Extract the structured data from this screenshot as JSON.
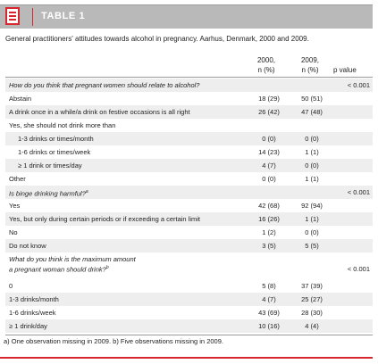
{
  "header": {
    "table_label": "TABLE 1",
    "icon": "table-icon",
    "accent_color": "#d8262e",
    "bar_color": "#b9b9b9"
  },
  "caption": "General practitioners' attitudes towards alcohol in pregnancy. Aarhus, Denmark, 2000 and 2009.",
  "columns": {
    "c2000_line1": "2000,",
    "c2000_line2": "n (%)",
    "c2009_line1": "2009,",
    "c2009_line2": "n (%)",
    "p": "p value"
  },
  "rows": [
    {
      "label": "How do you think that pregnant women should relate to alcohol?",
      "v2000": "",
      "v2009": "",
      "p": "< 0.001",
      "question": true
    },
    {
      "label": "Abstain",
      "v2000": "18 (29)",
      "v2009": "50 (51)",
      "p": ""
    },
    {
      "label": "A drink once in a while/a drink on festive occasions is all right",
      "v2000": "26 (42)",
      "v2009": "47 (48)",
      "p": ""
    },
    {
      "label": "Yes, she should not drink more than",
      "v2000": "",
      "v2009": "",
      "p": ""
    },
    {
      "label": "1-3 drinks or times/month",
      "v2000": "0 (0)",
      "v2009": "0 (0)",
      "p": "",
      "indent": true
    },
    {
      "label": "1-6 drinks or times/week",
      "v2000": "14 (23)",
      "v2009": "1 (1)",
      "p": "",
      "indent": true
    },
    {
      "label": "≥ 1 drink or times/day",
      "v2000": "4 (7)",
      "v2009": "0 (0)",
      "p": "",
      "indent": true
    },
    {
      "label": "Other",
      "v2000": "0 (0)",
      "v2009": "1 (1)",
      "p": ""
    },
    {
      "label": "Is binge drinking harmful?",
      "sup": "a",
      "v2000": "",
      "v2009": "",
      "p": "< 0.001",
      "question": true
    },
    {
      "label": "Yes",
      "v2000": "42 (68)",
      "v2009": "92 (94)",
      "p": ""
    },
    {
      "label": "Yes, but only during certain periods or if exceeding a certain limit",
      "v2000": "16 (26)",
      "v2009": "1 (1)",
      "p": ""
    },
    {
      "label": "No",
      "v2000": "1 (2)",
      "v2009": "0 (0)",
      "p": ""
    },
    {
      "label": "Do not know",
      "v2000": "3 (5)",
      "v2009": "5 (5)",
      "p": ""
    }
  ],
  "question3": {
    "line1": "What do you think is the maximum amount",
    "line2": "a pregnant woman should drink?",
    "sup": "b",
    "p": "< 0.001"
  },
  "rows3": [
    {
      "label": "0",
      "v2000": "5 (8)",
      "v2009": "37 (39)"
    },
    {
      "label": "1-3 drinks/month",
      "v2000": "4 (7)",
      "v2009": "25 (27)"
    },
    {
      "label": "1-6 drinks/week",
      "v2000": "43 (69)",
      "v2009": "28 (30)"
    },
    {
      "label": "≥ 1 drink/day",
      "v2000": "10 (16)",
      "v2009": "4 (4)"
    }
  ],
  "footnote": "a) One observation missing in 2009. b) Five observations missing in 2009."
}
